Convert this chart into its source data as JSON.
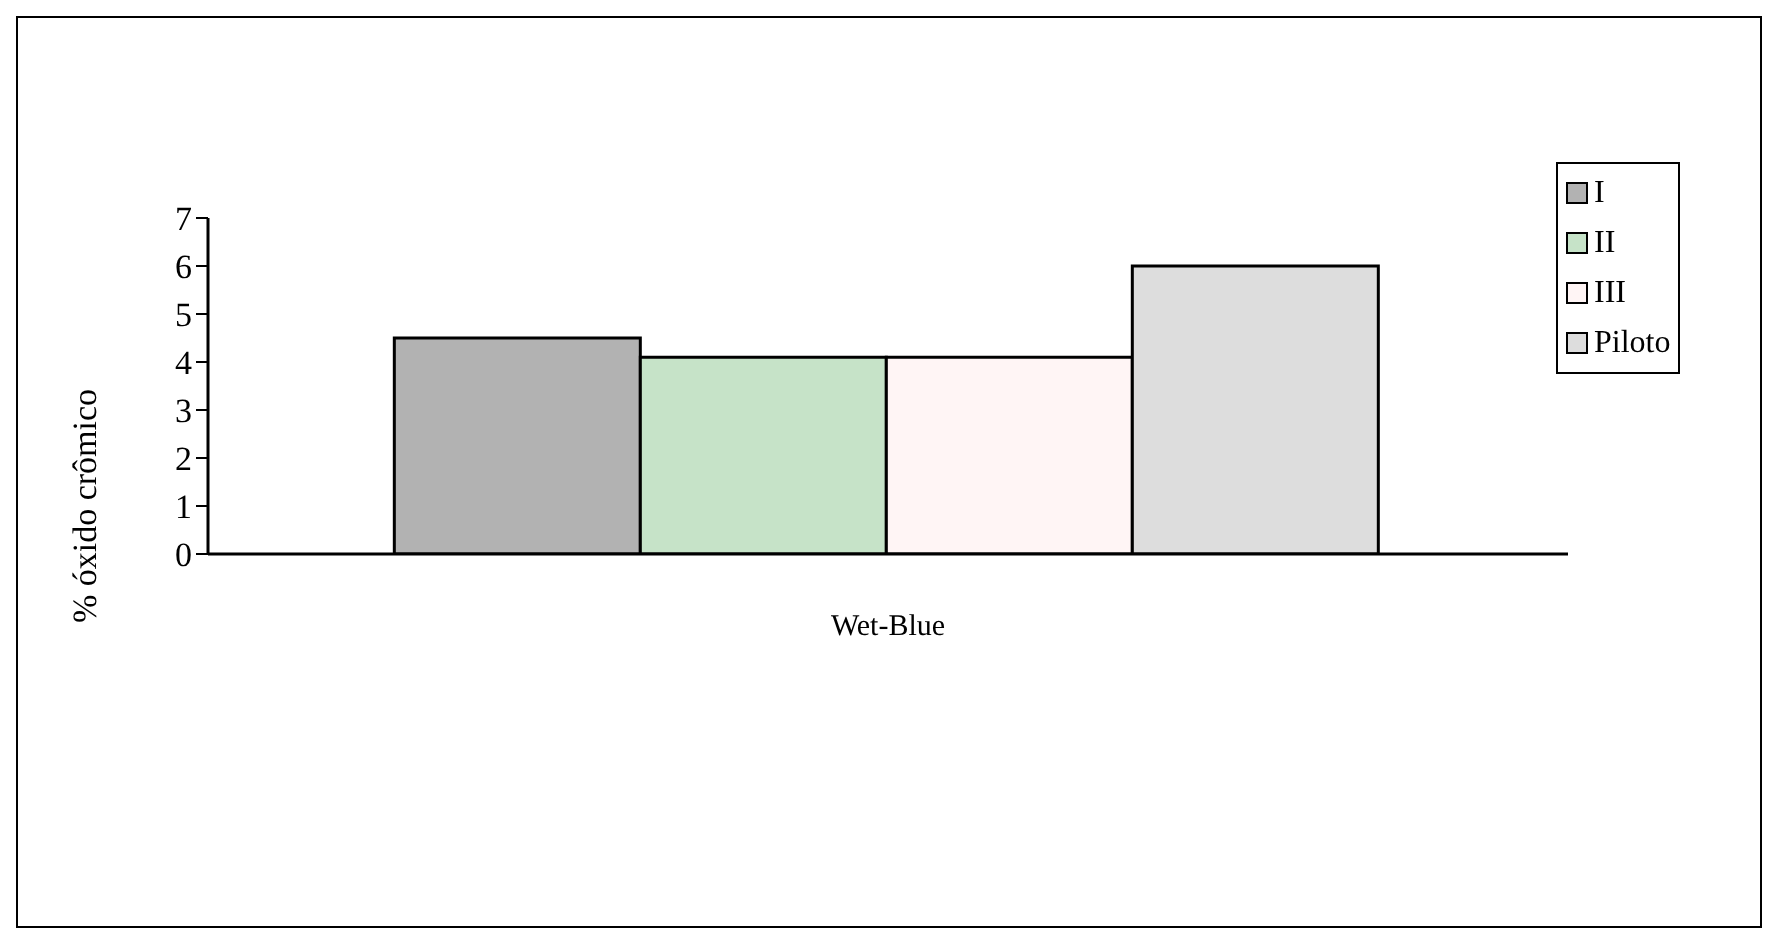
{
  "chart_data": {
    "type": "bar",
    "categories": [
      "Wet-Blue"
    ],
    "ylabel": "% óxido crômico",
    "ylim": [
      0,
      7
    ],
    "yticks": [
      0,
      1,
      2,
      3,
      4,
      5,
      6,
      7
    ],
    "grid": false,
    "legend": "right",
    "series": [
      {
        "name": "I",
        "color": "#b2b2b2",
        "values": [
          4.5
        ]
      },
      {
        "name": "II",
        "color": "#c6e3c8",
        "values": [
          4.1
        ]
      },
      {
        "name": "III",
        "color": "#fff5f5",
        "values": [
          4.1
        ]
      },
      {
        "name": "Piloto",
        "color": "#dddddd",
        "values": [
          6.0
        ]
      }
    ]
  }
}
